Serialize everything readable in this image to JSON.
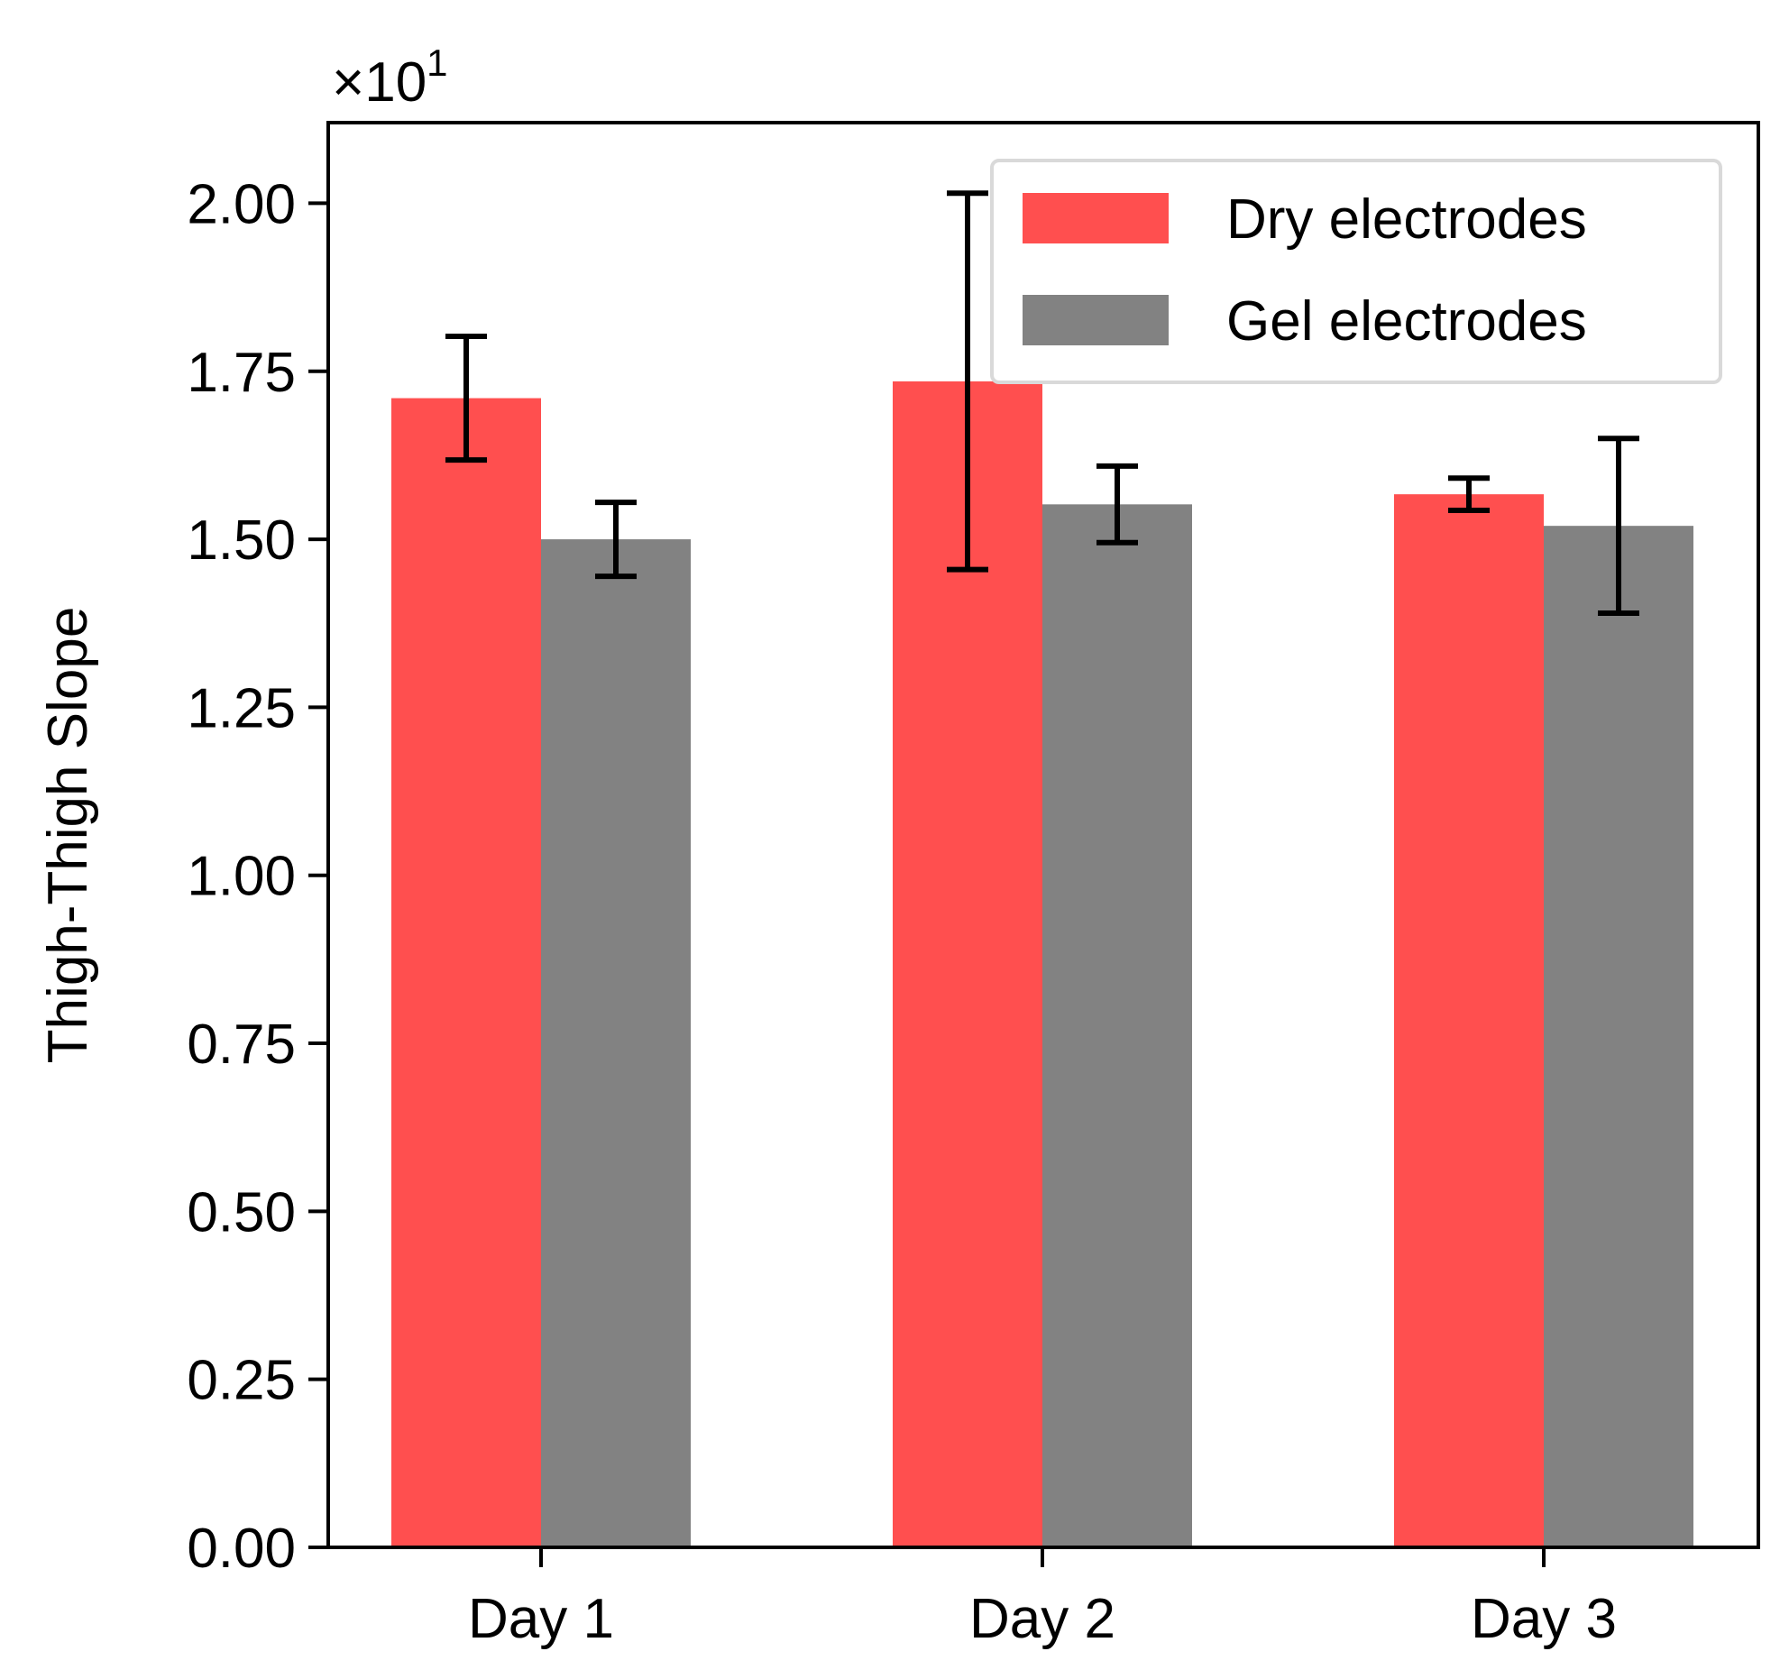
{
  "chart_data": {
    "type": "bar",
    "title": "",
    "xlabel": "",
    "ylabel": "Thigh-Thigh Slope",
    "scale_label": {
      "base": "×10",
      "exponent": "1"
    },
    "categories": [
      "Day 1",
      "Day 2",
      "Day 3"
    ],
    "ylim": [
      0,
      2.12
    ],
    "yticks": [
      0.0,
      0.25,
      0.5,
      0.75,
      1.0,
      1.25,
      1.5,
      1.75,
      2.0
    ],
    "ytick_labels": [
      "0.00",
      "0.25",
      "0.50",
      "0.75",
      "1.00",
      "1.25",
      "1.50",
      "1.75",
      "2.00"
    ],
    "series": [
      {
        "name": "Dry electrodes",
        "color": "#ff4f4f",
        "values": [
          1.71,
          1.735,
          1.567
        ],
        "errors": [
          0.092,
          0.28,
          0.024
        ]
      },
      {
        "name": "Gel electrodes",
        "color": "#828282",
        "values": [
          1.5,
          1.552,
          1.52
        ],
        "errors": [
          0.055,
          0.057,
          0.13
        ]
      }
    ],
    "legend": {
      "position": "top-right",
      "entries": [
        "Dry electrodes",
        "Gel electrodes"
      ]
    },
    "grid": false
  }
}
